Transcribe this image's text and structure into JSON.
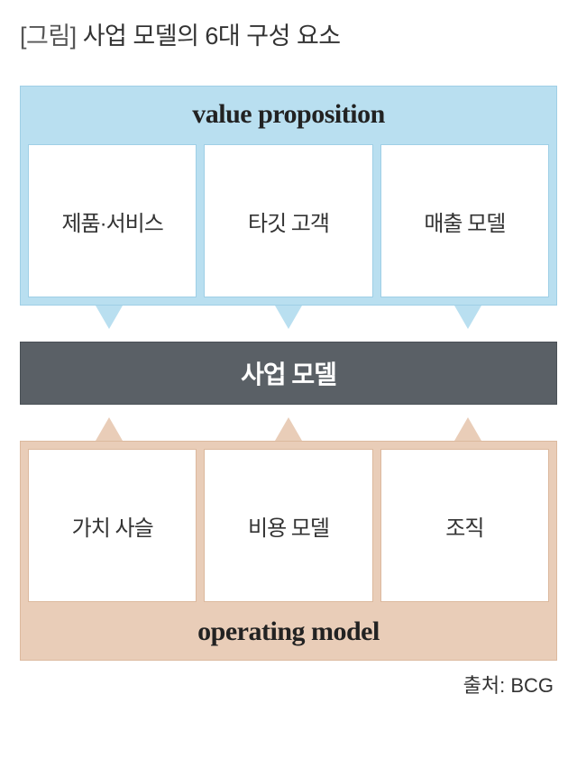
{
  "title_prefix": "[그림]",
  "title_text": "사업 모델의 6대 구성 요소",
  "top_section": {
    "header": "value proposition",
    "bg_color": "#b9dff0",
    "border_color": "#9fcfe6",
    "box_border_color": "#9fcfe6",
    "boxes": [
      "제품·서비스",
      "타깃 고객",
      "매출 모델"
    ]
  },
  "arrow_down_color": "#b9dff0",
  "center": {
    "label": "사업 모델",
    "bg_color": "#5a6066",
    "text_color": "#ffffff"
  },
  "arrow_up_color": "#e9cdb8",
  "bottom_section": {
    "footer": "operating model",
    "bg_color": "#e9cdb8",
    "border_color": "#dcb99e",
    "box_border_color": "#dcb99e",
    "boxes": [
      "가치 사슬",
      "비용 모델",
      "조직"
    ]
  },
  "source_label": "출처:",
  "source_value": "BCG"
}
